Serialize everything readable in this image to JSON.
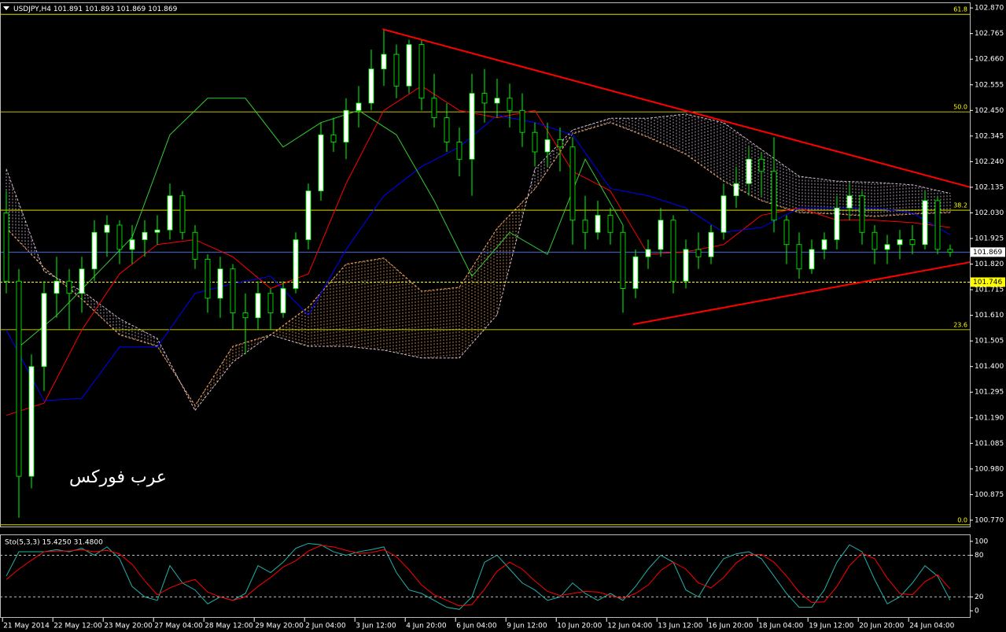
{
  "chart_data": [
    {
      "type": "candlestick",
      "title": "USDJPY,H4",
      "quote": [
        101.891,
        101.893,
        101.869,
        101.869
      ],
      "ylim": [
        100.744,
        102.893
      ],
      "yticks": [
        {
          "value": 102.87,
          "label": "102.870"
        },
        {
          "value": 102.765,
          "label": "102.765"
        },
        {
          "value": 102.66,
          "label": "102.660"
        },
        {
          "value": 102.555,
          "label": "102.555"
        },
        {
          "value": 102.45,
          "label": "102.450"
        },
        {
          "value": 102.345,
          "label": "102.345"
        },
        {
          "value": 102.24,
          "label": "102.240"
        },
        {
          "value": 102.135,
          "label": "102.135"
        },
        {
          "value": 102.03,
          "label": "102.030"
        },
        {
          "value": 101.925,
          "label": "101.925"
        },
        {
          "value": 101.82,
          "label": "101.820"
        },
        {
          "value": 101.715,
          "label": "101.715"
        },
        {
          "value": 101.61,
          "label": "101.610"
        },
        {
          "value": 101.505,
          "label": "101.505"
        },
        {
          "value": 101.4,
          "label": "101.400"
        },
        {
          "value": 101.295,
          "label": "101.295"
        },
        {
          "value": 101.19,
          "label": "101.190"
        },
        {
          "value": 101.085,
          "label": "101.085"
        },
        {
          "value": 100.98,
          "label": "100.980"
        },
        {
          "value": 100.875,
          "label": "100.875"
        },
        {
          "value": 100.77,
          "label": "100.770"
        }
      ],
      "xticks": [
        {
          "value": -0.3,
          "label": "21 May 2014"
        },
        {
          "value": 3.7,
          "label": "22 May 12:00"
        },
        {
          "value": 7.7,
          "label": "23 May 20:00"
        },
        {
          "value": 11.7,
          "label": "27 May 04:00"
        },
        {
          "value": 15.7,
          "label": "28 May 12:00"
        },
        {
          "value": 19.7,
          "label": "29 May 20:00"
        },
        {
          "value": 23.7,
          "label": "2 Jun 04:00"
        },
        {
          "value": 27.7,
          "label": "3 Jun 12:00"
        },
        {
          "value": 31.7,
          "label": "4 Jun 20:00"
        },
        {
          "value": 35.7,
          "label": "6 Jun 04:00"
        },
        {
          "value": 39.7,
          "label": "9 Jun 12:00"
        },
        {
          "value": 43.7,
          "label": "10 Jun 20:00"
        },
        {
          "value": 47.7,
          "label": "12 Jun 04:00"
        },
        {
          "value": 51.7,
          "label": "13 Jun 12:00"
        },
        {
          "value": 55.7,
          "label": "16 Jun 20:00"
        },
        {
          "value": 59.7,
          "label": "18 Jun 04:00"
        },
        {
          "value": 63.7,
          "label": "19 Jun 12:00"
        },
        {
          "value": 67.7,
          "label": "20 Jun 20:00"
        },
        {
          "value": 71.7,
          "label": "24 Jun 04:00"
        }
      ],
      "open": [
        102.03,
        101.75,
        100.95,
        101.4,
        101.7,
        101.75,
        101.7,
        101.8,
        101.95,
        101.98,
        101.88,
        101.92,
        101.95,
        101.96,
        102.1,
        101.95,
        101.84,
        101.68,
        101.8,
        101.62,
        101.6,
        101.7,
        101.62,
        101.72,
        101.92,
        102.12,
        102.35,
        102.32,
        102.45,
        102.48,
        102.62,
        102.68,
        102.55,
        102.72,
        102.5,
        102.42,
        102.32,
        102.25,
        102.52,
        102.48,
        102.5,
        102.45,
        102.36,
        102.28,
        102.33,
        102.3,
        102.0,
        101.95,
        102.02,
        101.95,
        101.72,
        101.85,
        101.88,
        102.0,
        101.75,
        101.88,
        101.85,
        101.95,
        102.1,
        102.15,
        102.25,
        102.2,
        102.0,
        101.9,
        101.8,
        101.88,
        101.92,
        102.05,
        102.1,
        101.95,
        101.88,
        101.9,
        101.92,
        101.9,
        102.08,
        101.88
      ],
      "high": [
        102.12,
        101.8,
        101.45,
        101.75,
        101.85,
        101.8,
        101.85,
        102.0,
        102.02,
        102.0,
        101.98,
        102.0,
        102.02,
        102.15,
        102.12,
        101.98,
        101.86,
        101.85,
        101.82,
        101.7,
        101.75,
        101.72,
        101.75,
        101.95,
        102.15,
        102.4,
        102.42,
        102.5,
        102.55,
        102.7,
        102.78,
        102.72,
        102.74,
        102.74,
        102.6,
        102.48,
        102.38,
        102.6,
        102.62,
        102.58,
        102.56,
        102.52,
        102.4,
        102.4,
        102.38,
        102.34,
        102.1,
        102.08,
        102.05,
        101.98,
        101.88,
        101.92,
        102.05,
        102.02,
        101.92,
        101.95,
        101.98,
        102.15,
        102.22,
        102.3,
        102.28,
        102.34,
        102.02,
        101.95,
        101.92,
        101.95,
        102.1,
        102.15,
        102.12,
        101.98,
        101.94,
        101.96,
        101.98,
        102.12,
        102.1,
        101.9
      ],
      "low": [
        101.7,
        100.78,
        100.9,
        101.3,
        101.6,
        101.55,
        101.62,
        101.75,
        101.85,
        101.82,
        101.82,
        101.85,
        101.9,
        101.92,
        101.92,
        101.8,
        101.62,
        101.6,
        101.55,
        101.45,
        101.55,
        101.55,
        101.6,
        101.7,
        101.88,
        102.08,
        102.28,
        102.25,
        102.38,
        102.45,
        102.55,
        102.5,
        102.52,
        102.45,
        102.38,
        102.28,
        102.18,
        102.1,
        102.4,
        102.42,
        102.38,
        102.3,
        102.22,
        102.22,
        102.2,
        101.9,
        101.88,
        101.92,
        101.9,
        101.62,
        101.68,
        101.8,
        101.85,
        101.7,
        101.72,
        101.8,
        101.82,
        101.92,
        102.05,
        102.1,
        102.1,
        101.95,
        101.82,
        101.76,
        101.78,
        101.84,
        101.88,
        102.0,
        101.9,
        101.82,
        101.82,
        101.84,
        101.86,
        101.88,
        101.86,
        101.85
      ],
      "close": [
        101.75,
        100.95,
        101.4,
        101.7,
        101.75,
        101.7,
        101.8,
        101.95,
        101.98,
        101.88,
        101.92,
        101.95,
        101.96,
        102.1,
        101.95,
        101.84,
        101.68,
        101.8,
        101.62,
        101.6,
        101.7,
        101.62,
        101.72,
        101.92,
        102.12,
        102.35,
        102.32,
        102.45,
        102.48,
        102.62,
        102.68,
        102.55,
        102.72,
        102.5,
        102.42,
        102.32,
        102.25,
        102.52,
        102.48,
        102.5,
        102.45,
        102.36,
        102.28,
        102.33,
        102.3,
        102.0,
        101.95,
        102.02,
        101.95,
        101.72,
        101.85,
        101.88,
        102.0,
        101.75,
        101.88,
        101.85,
        101.95,
        102.1,
        102.15,
        102.25,
        102.2,
        102.0,
        101.9,
        101.8,
        101.88,
        101.92,
        102.05,
        102.1,
        101.95,
        101.88,
        101.9,
        101.92,
        101.9,
        102.08,
        101.88,
        101.869
      ],
      "up_color": "#ffffff",
      "down_color": "#000000",
      "wick_color": "#00ff00",
      "cloud": {
        "x": [
          0,
          3,
          6,
          9,
          12,
          15,
          18,
          21,
          24,
          27,
          30,
          33,
          36,
          39,
          42,
          45,
          48,
          51,
          54,
          57,
          60,
          63,
          66,
          69,
          72,
          75
        ],
        "span_a": [
          101.967,
          101.805,
          101.676,
          101.53,
          101.483,
          101.24,
          101.483,
          101.53,
          101.644,
          101.82,
          101.845,
          101.709,
          101.725,
          101.967,
          102.128,
          102.354,
          102.4,
          102.34,
          102.27,
          102.16,
          102.08,
          102.031,
          102.025,
          102.015,
          102.025,
          102.031
        ],
        "span_b": [
          102.21,
          101.79,
          101.71,
          101.596,
          101.515,
          101.22,
          101.418,
          101.53,
          101.483,
          101.483,
          101.467,
          101.435,
          101.435,
          101.612,
          102.21,
          102.37,
          102.418,
          102.418,
          102.435,
          102.4,
          102.29,
          102.18,
          102.16,
          102.155,
          102.145,
          102.11
        ],
        "up_color": "#f4a460",
        "down_color": "#d8bfd8"
      },
      "overlays": [
        {
          "color": "#ff0000",
          "x": [
            0,
            3,
            6,
            9,
            12,
            15,
            18,
            21,
            24,
            27,
            30,
            33,
            36,
            39,
            42,
            45,
            48,
            51,
            54,
            57,
            60,
            63,
            66,
            69,
            72,
            75
          ],
          "values": [
            101.2,
            101.25,
            101.55,
            101.78,
            101.9,
            101.92,
            101.85,
            101.72,
            101.78,
            102.15,
            102.45,
            102.55,
            102.45,
            102.42,
            102.45,
            102.2,
            102.12,
            101.86,
            101.87,
            101.9,
            102.02,
            102.05,
            102.0,
            102.0,
            101.99,
            101.97
          ]
        },
        {
          "color": "#0000ff",
          "x": [
            0,
            3,
            6,
            9,
            12,
            15,
            18,
            21,
            24,
            27,
            30,
            33,
            36,
            39,
            42,
            45,
            48,
            51,
            54,
            57,
            60,
            63,
            66,
            69,
            72,
            75
          ],
          "values": [
            101.55,
            101.26,
            101.27,
            101.48,
            101.48,
            101.7,
            101.74,
            101.77,
            101.61,
            101.88,
            102.1,
            102.22,
            102.3,
            102.43,
            102.4,
            102.35,
            102.13,
            102.1,
            102.05,
            101.95,
            101.97,
            102.05,
            102.05,
            102.05,
            102.03,
            101.94
          ]
        },
        {
          "color": "#32cd32",
          "x": [
            1,
            4,
            7,
            10,
            13,
            16,
            19,
            22,
            25,
            28,
            31,
            34,
            37,
            40,
            43,
            46,
            49
          ],
          "values": [
            101.48,
            101.61,
            101.77,
            101.93,
            102.35,
            102.5,
            102.5,
            102.3,
            102.4,
            102.45,
            102.35,
            102.08,
            101.77,
            101.95,
            101.86,
            102.25,
            101.98
          ]
        }
      ],
      "fibo": {
        "color": "#ffff00",
        "levels": [
          {
            "value": 102.844,
            "label": "61.8"
          },
          {
            "value": 102.444,
            "label": "50.0"
          },
          {
            "value": 102.041,
            "label": "38.2"
          },
          {
            "value": 101.551,
            "label": "23.6"
          },
          {
            "value": 100.751,
            "label": "0.0"
          }
        ]
      },
      "price_line": {
        "value": 101.869,
        "color": "#4169e1"
      },
      "alert_line": {
        "value": 101.746,
        "color": "#ffff00"
      },
      "trendline_color": "#ff0000",
      "trendlines": [
        {
          "x": [
            29.9,
            76.6
          ],
          "values": [
            102.783,
            102.135
          ]
        },
        {
          "x": [
            49.8,
            76.6
          ],
          "values": [
            101.573,
            101.828
          ]
        }
      ],
      "watermark": "عرب فوركس"
    },
    {
      "type": "line",
      "title": "Sto(5,3,3) 15.4250 31.4800",
      "ylim": [
        -9,
        110
      ],
      "yticks": [
        100,
        80,
        20,
        0
      ],
      "levels": [
        80,
        20
      ],
      "series": [
        {
          "color": "#20b2aa",
          "values": [
            50,
            85,
            85,
            85,
            88,
            85,
            90,
            80,
            92,
            75,
            35,
            20,
            15,
            65,
            40,
            30,
            10,
            20,
            15,
            25,
            65,
            55,
            70,
            90,
            97,
            95,
            85,
            80,
            85,
            88,
            92,
            55,
            30,
            25,
            15,
            5,
            2,
            20,
            70,
            80,
            60,
            40,
            30,
            15,
            20,
            40,
            25,
            15,
            25,
            15,
            35,
            60,
            80,
            70,
            30,
            20,
            50,
            75,
            82,
            85,
            75,
            50,
            25,
            5,
            5,
            30,
            70,
            95,
            85,
            45,
            10,
            20,
            40,
            65,
            50,
            15.425
          ]
        },
        {
          "color": "#ff0000",
          "values": [
            45,
            60,
            73,
            85,
            86,
            86,
            88,
            85,
            87,
            82,
            67,
            43,
            23,
            33,
            40,
            45,
            27,
            20,
            15,
            20,
            35,
            48,
            63,
            72,
            86,
            94,
            92,
            87,
            83,
            84,
            88,
            78,
            59,
            37,
            23,
            15,
            7,
            9,
            31,
            57,
            70,
            60,
            43,
            28,
            22,
            25,
            28,
            27,
            22,
            18,
            25,
            37,
            58,
            70,
            60,
            40,
            33,
            48,
            69,
            81,
            81,
            70,
            50,
            27,
            12,
            13,
            35,
            65,
            83,
            75,
            47,
            25,
            23,
            42,
            52,
            31.48
          ]
        }
      ]
    }
  ]
}
